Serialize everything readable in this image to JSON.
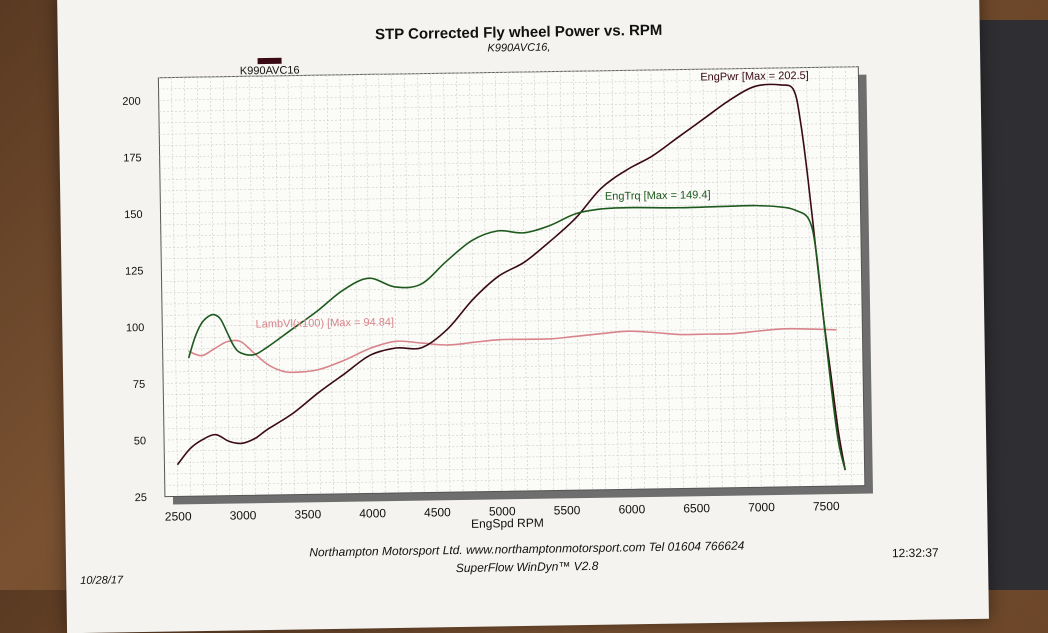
{
  "chart_data": {
    "type": "line",
    "title": "STP Corrected Fly wheel Power vs. RPM",
    "subtitle": "K990AVC16,",
    "xlabel": "EngSpd  RPM",
    "ylabel": "",
    "xlim": [
      2400,
      7800
    ],
    "ylim": [
      25,
      210
    ],
    "xticks": [
      "2500",
      "3000",
      "3500",
      "4000",
      "4500",
      "5000",
      "5500",
      "6000",
      "6500",
      "7000",
      "7500"
    ],
    "yticks": [
      "25",
      "50",
      "75",
      "100",
      "125",
      "150",
      "175",
      "200"
    ],
    "grid": true,
    "legend": {
      "position": "top-left",
      "entries": [
        "K990AVC16"
      ]
    },
    "series": [
      {
        "name": "EngPwr",
        "label": "EngPwr [Max = 202.5]",
        "color": "#3a0a14",
        "x": [
          2500,
          2600,
          2700,
          2800,
          2900,
          3000,
          3100,
          3200,
          3400,
          3600,
          3800,
          4000,
          4200,
          4400,
          4600,
          4800,
          5000,
          5200,
          5400,
          5600,
          5800,
          6000,
          6200,
          6400,
          6600,
          6800,
          7000,
          7200,
          7300,
          7350,
          7400,
          7450,
          7500,
          7550,
          7600,
          7650
        ],
        "y": [
          39,
          46,
          50,
          52,
          49,
          48,
          50,
          54,
          61,
          70,
          78,
          86,
          89,
          89,
          97,
          110,
          120,
          126,
          135,
          145,
          158,
          166,
          172,
          180,
          188,
          196,
          202,
          202.5,
          200,
          185,
          160,
          130,
          100,
          75,
          50,
          32
        ]
      },
      {
        "name": "EngTrq",
        "label": "EngTrq [Max = 149.4]",
        "color": "#1e5a1e",
        "x": [
          2600,
          2650,
          2700,
          2750,
          2800,
          2850,
          2900,
          2950,
          3000,
          3100,
          3200,
          3400,
          3600,
          3800,
          4000,
          4200,
          4400,
          4600,
          4800,
          5000,
          5200,
          5400,
          5600,
          5800,
          6000,
          6400,
          6800,
          7000,
          7200,
          7300,
          7400,
          7450,
          7500,
          7550,
          7600,
          7650
        ],
        "y": [
          86,
          95,
          101,
          104,
          105,
          103,
          97,
          91,
          88,
          87,
          90,
          98,
          106,
          115,
          120,
          116,
          117,
          127,
          136,
          140,
          139,
          142,
          147,
          149,
          149.4,
          149,
          149.3,
          149.4,
          148.5,
          147,
          143,
          130,
          100,
          70,
          45,
          32
        ]
      },
      {
        "name": "LambVl",
        "label": "LambVl(x100) [Max = 94.84]",
        "color": "#d8848a",
        "x": [
          2600,
          2700,
          2800,
          2900,
          3000,
          3100,
          3200,
          3300,
          3400,
          3600,
          3800,
          4000,
          4200,
          4400,
          4600,
          4800,
          5000,
          5200,
          5400,
          5600,
          5800,
          6000,
          6200,
          6400,
          6600,
          6800,
          7000,
          7200,
          7400,
          7600
        ],
        "y": [
          89,
          87,
          90,
          93,
          93,
          88,
          83,
          80,
          79,
          80,
          84,
          89,
          92,
          91,
          90,
          91,
          92,
          92,
          92,
          93,
          94,
          94.8,
          94,
          93,
          93,
          93,
          94,
          94.8,
          94.5,
          94
        ]
      }
    ]
  },
  "footer": {
    "company": "Northampton Motorsport Ltd. www.northamptonmotorsport.com Tel 01604 766624",
    "software": "SuperFlow WinDyn™ V2.8",
    "date": "10/28/17",
    "time": "12:32:37"
  }
}
